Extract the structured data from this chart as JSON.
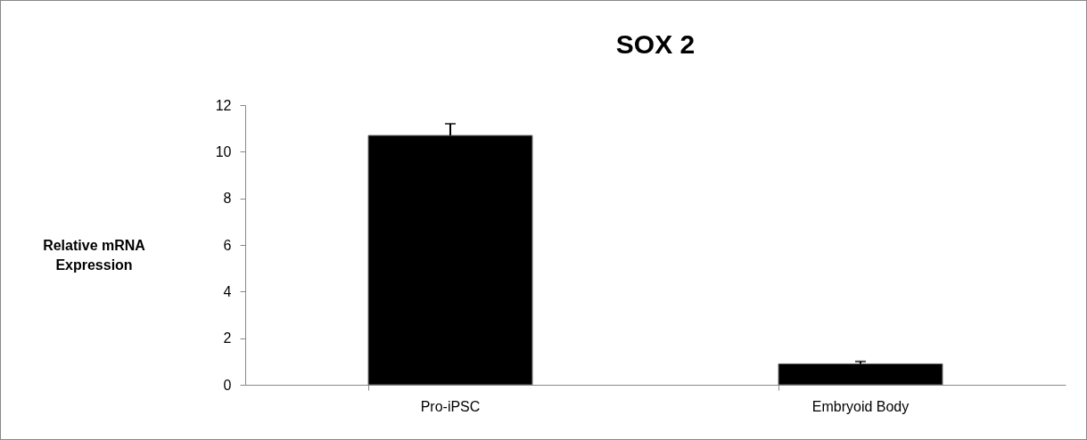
{
  "chart_data": {
    "type": "bar",
    "title": "SOX 2",
    "ylabel": "Relative mRNA Expression",
    "categories": [
      "Pro-iPSC",
      "Embryoid Body"
    ],
    "values": [
      10.7,
      0.9
    ],
    "color": "#000000",
    "errors": [
      [
        10.7,
        11.2
      ],
      [
        0.9,
        1.0
      ]
    ],
    "ylim": [
      0,
      12
    ],
    "yticks": [
      0,
      2,
      4,
      6,
      8,
      10,
      12
    ],
    "grid": false
  }
}
